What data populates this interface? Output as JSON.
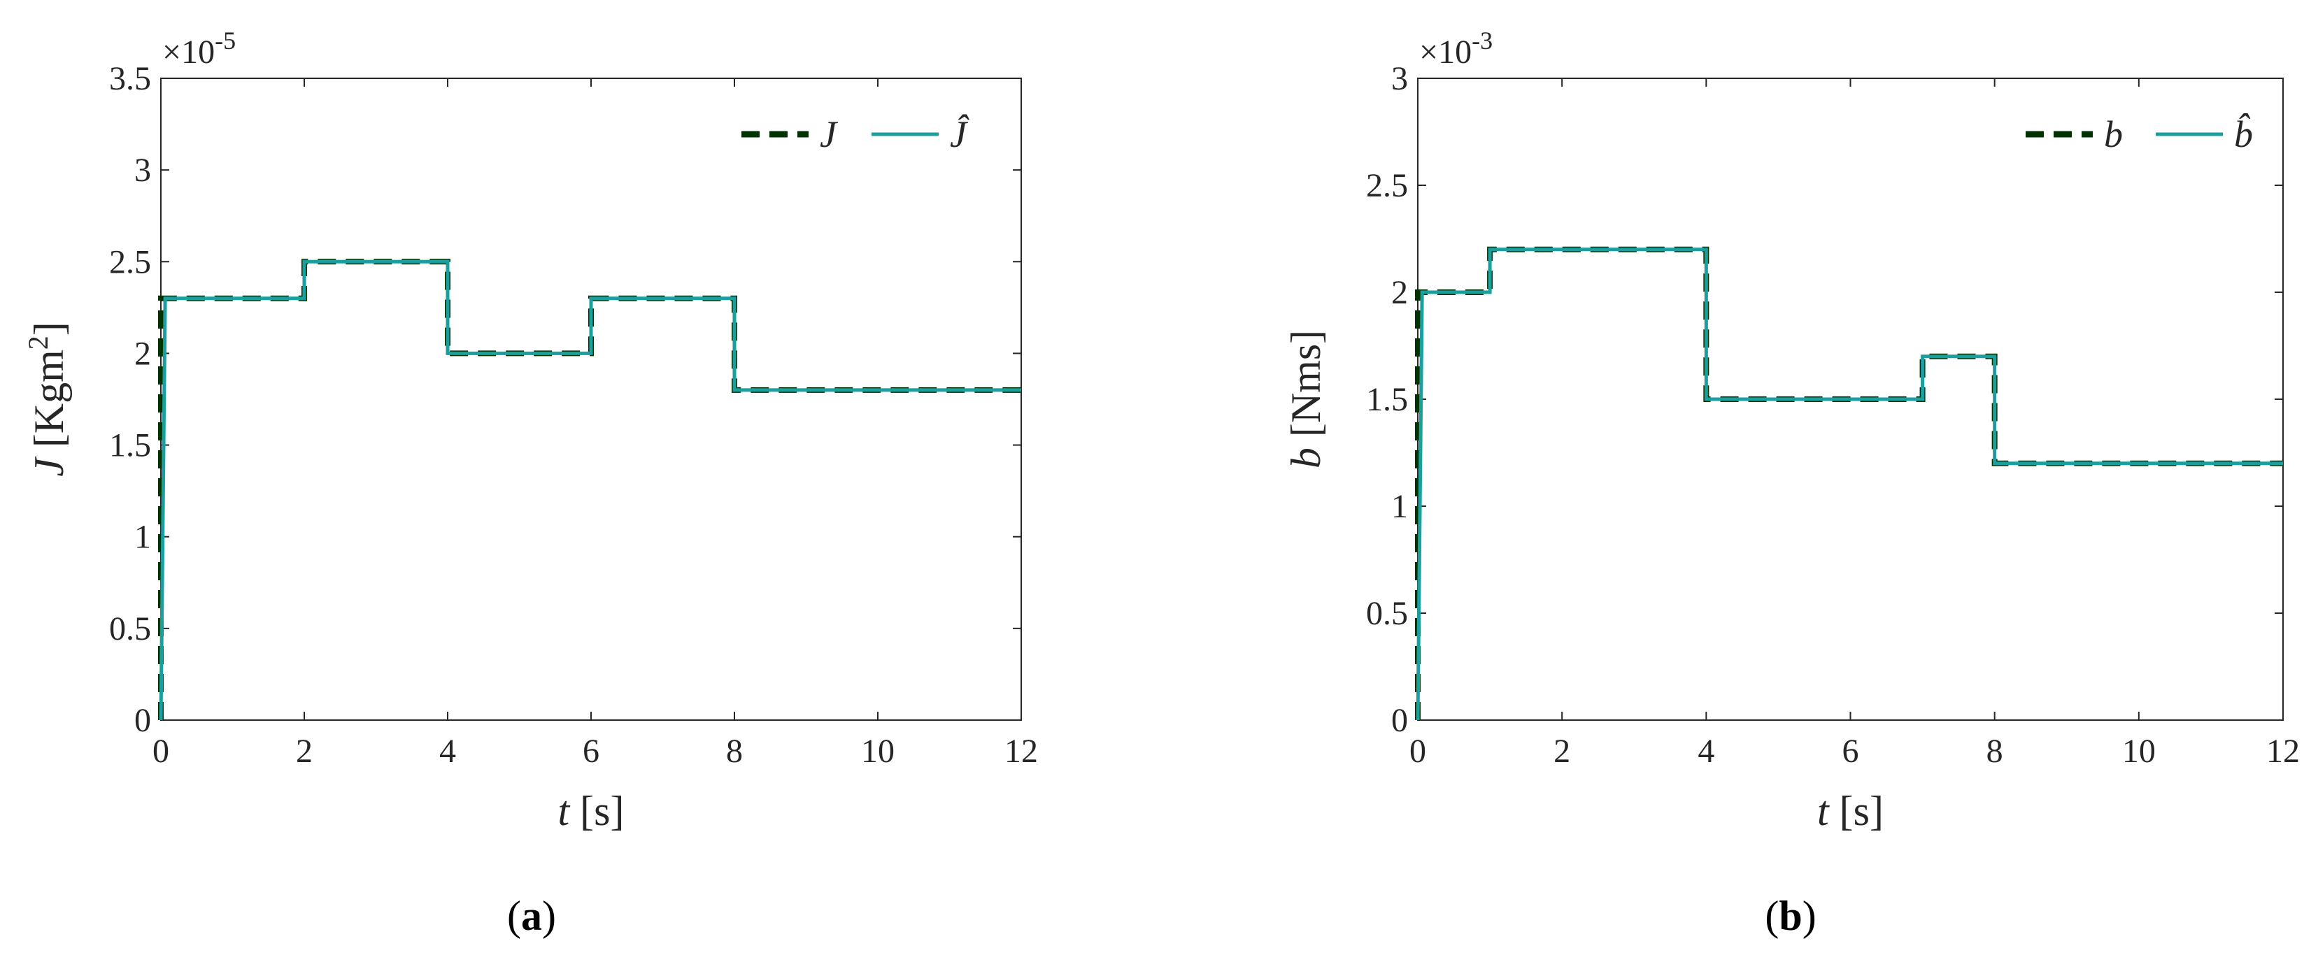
{
  "chart_data": [
    {
      "type": "line",
      "caption": {
        "open": "(",
        "letter": "a",
        "close": ")"
      },
      "multiplier": {
        "base": "×10",
        "exp": "-5"
      },
      "ylabel": {
        "var": "J",
        "unit_open": "[Kgm",
        "unit_sup": "2",
        "unit_close": "]"
      },
      "xlabel": {
        "var": "t",
        "unit": "[s]"
      },
      "xlim": [
        0,
        12
      ],
      "ylim": [
        0,
        3.5
      ],
      "xticks": [
        0,
        2,
        4,
        6,
        8,
        10,
        12
      ],
      "xtick_labels": [
        "0",
        "2",
        "4",
        "6",
        "8",
        "10",
        "12"
      ],
      "yticks": [
        0,
        0.5,
        1,
        1.5,
        2,
        2.5,
        3,
        3.5
      ],
      "ytick_labels": [
        "0",
        "0.5",
        "1",
        "1.5",
        "2",
        "2.5",
        "3",
        "3.5"
      ],
      "legend_position": "top-right",
      "series": [
        {
          "name": "J",
          "style": "dashed",
          "color": "#003300",
          "x": [
            0,
            0,
            2,
            2,
            4,
            4,
            6,
            6,
            8,
            8,
            12
          ],
          "y": [
            0,
            2.3,
            2.3,
            2.5,
            2.5,
            2.0,
            2.0,
            2.3,
            2.3,
            1.8,
            1.8
          ]
        },
        {
          "name": "Ĵ",
          "style": "solid",
          "color": "#1a9e9e",
          "x": [
            0,
            0.06,
            2.0,
            2.0,
            4.0,
            4.0,
            6.0,
            6.0,
            8.0,
            8.0,
            12
          ],
          "y": [
            0,
            2.3,
            2.3,
            2.5,
            2.5,
            2.0,
            2.0,
            2.3,
            2.3,
            1.8,
            1.8
          ]
        }
      ]
    },
    {
      "type": "line",
      "caption": {
        "open": "(",
        "letter": "b",
        "close": ")"
      },
      "multiplier": {
        "base": "×10",
        "exp": "-3"
      },
      "ylabel": {
        "var": "b",
        "unit_open": "[Nms]",
        "unit_sup": "",
        "unit_close": ""
      },
      "xlabel": {
        "var": "t",
        "unit": "[s]"
      },
      "xlim": [
        0,
        12
      ],
      "ylim": [
        0,
        3
      ],
      "xticks": [
        0,
        2,
        4,
        6,
        8,
        10,
        12
      ],
      "xtick_labels": [
        "0",
        "2",
        "4",
        "6",
        "8",
        "10",
        "12"
      ],
      "yticks": [
        0,
        0.5,
        1,
        1.5,
        2,
        2.5,
        3
      ],
      "ytick_labels": [
        "0",
        "0.5",
        "1",
        "1.5",
        "2",
        "2.5",
        "3"
      ],
      "legend_position": "top-right",
      "series": [
        {
          "name": "b",
          "style": "dashed",
          "color": "#003300",
          "x": [
            0,
            0,
            1,
            1,
            4,
            4,
            7,
            7,
            8,
            8,
            12
          ],
          "y": [
            0,
            2.0,
            2.0,
            2.2,
            2.2,
            1.5,
            1.5,
            1.7,
            1.7,
            1.2,
            1.2
          ]
        },
        {
          "name": "b̂",
          "style": "solid",
          "color": "#1a9e9e",
          "x": [
            0,
            0.06,
            1.0,
            1.0,
            4.0,
            4.0,
            7.0,
            7.0,
            8.0,
            8.0,
            12
          ],
          "y": [
            0,
            2.0,
            2.0,
            2.2,
            2.2,
            1.5,
            1.5,
            1.7,
            1.7,
            1.2,
            1.2
          ]
        }
      ]
    }
  ]
}
